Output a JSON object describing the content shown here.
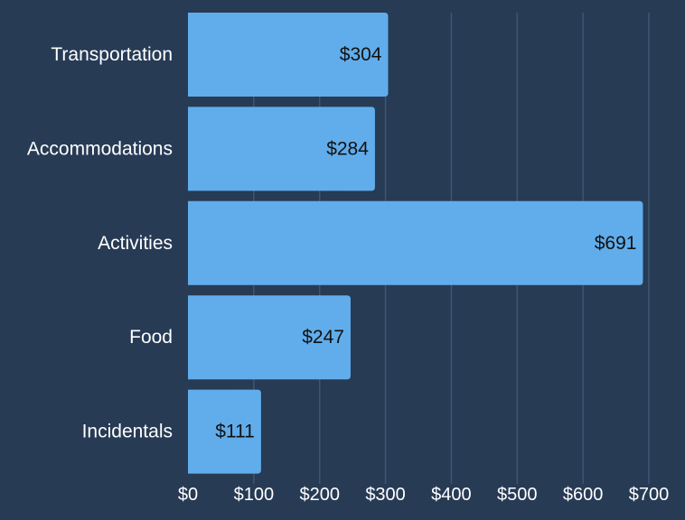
{
  "colors": {
    "background": "#273b55",
    "bar": "#61adeb",
    "grid": "#3e5573",
    "text": "#ffffff",
    "value_text": "#111111"
  },
  "chart_data": {
    "type": "bar",
    "orientation": "horizontal",
    "categories": [
      "Transportation",
      "Accommodations",
      "Activities",
      "Food",
      "Incidentals"
    ],
    "values": [
      304,
      284,
      691,
      247,
      111
    ],
    "value_labels": [
      "$304",
      "$284",
      "$691",
      "$247",
      "$111"
    ],
    "x_ticks": [
      0,
      100,
      200,
      300,
      400,
      500,
      600,
      700
    ],
    "x_tick_labels": [
      "$0",
      "$100",
      "$200",
      "$300",
      "$400",
      "$500",
      "$600",
      "$700"
    ],
    "xlim": [
      0,
      700
    ],
    "title": "",
    "xlabel": "",
    "ylabel": "",
    "grid": "vertical",
    "legend": "none"
  }
}
